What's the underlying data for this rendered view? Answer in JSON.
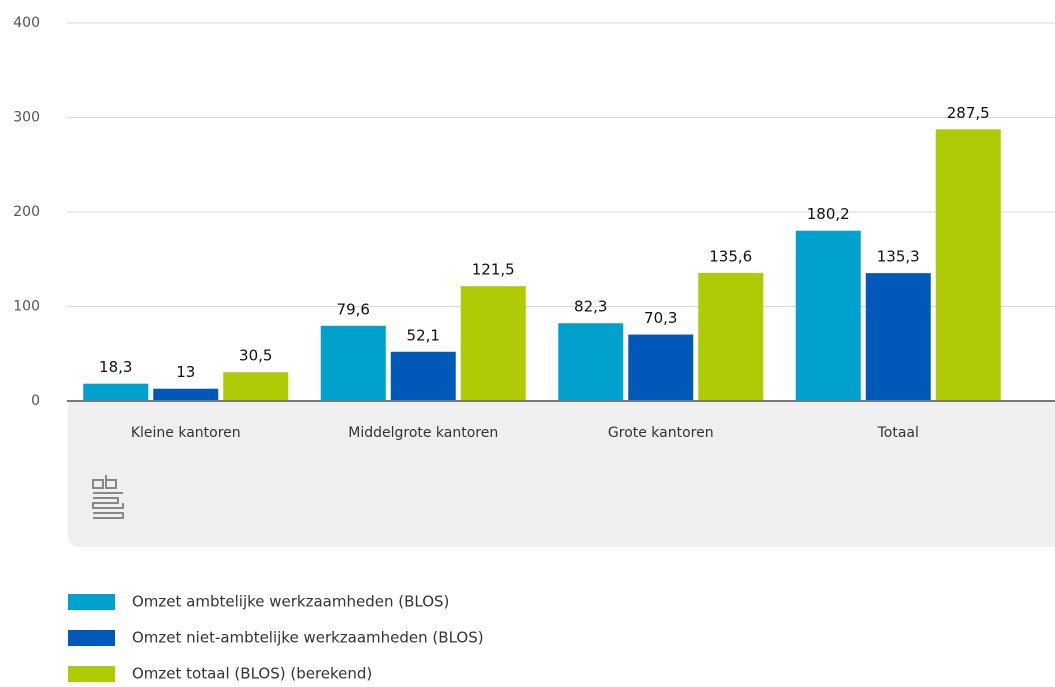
{
  "chart_data": {
    "type": "bar",
    "categories": [
      "Kleine kantoren",
      "Middelgrote kantoren",
      "Grote kantoren",
      "Totaal"
    ],
    "series": [
      {
        "name": "Omzet ambtelijke werkzaamheden (BLOS)",
        "color": "#00a1cd",
        "values": [
          18.3,
          79.6,
          82.3,
          180.2
        ],
        "value_labels": [
          "18,3",
          "79,6",
          "82,3",
          "180,2"
        ]
      },
      {
        "name": "Omzet niet-ambtelijke werkzaamheden (BLOS)",
        "color": "#0058b8",
        "values": [
          13,
          52.1,
          70.3,
          135.3
        ],
        "value_labels": [
          "13",
          "52,1",
          "70,3",
          "135,3"
        ]
      },
      {
        "name": "Omzet totaal (BLOS) (berekend)",
        "color": "#afcb05",
        "values": [
          30.5,
          121.5,
          135.6,
          287.5
        ],
        "value_labels": [
          "30,5",
          "121,5",
          "135,6",
          "287,5"
        ]
      }
    ],
    "ylim": [
      0,
      400
    ],
    "yticks": [
      0,
      100,
      200,
      300,
      400
    ],
    "grid": true
  }
}
